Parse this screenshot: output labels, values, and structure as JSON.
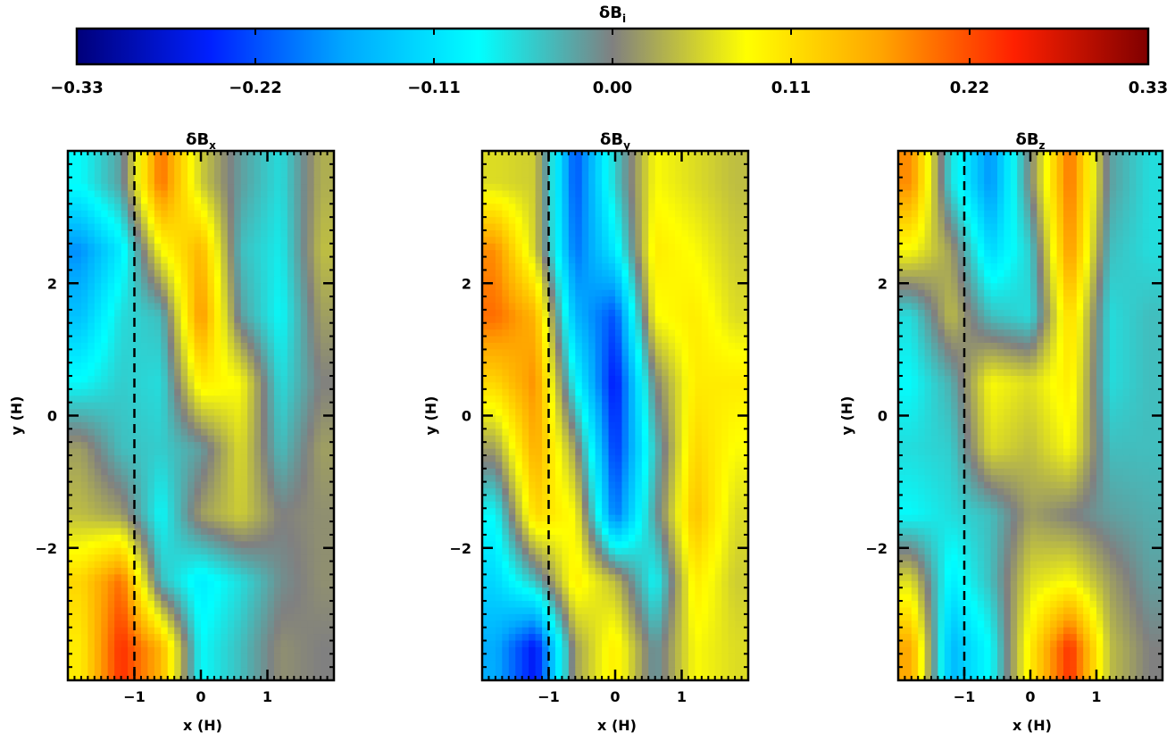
{
  "colorbar": {
    "title_base": "δB",
    "title_sub": "i",
    "ticks": [
      -0.33,
      -0.22,
      -0.11,
      0.0,
      0.11,
      0.22,
      0.33
    ],
    "tick_labels": [
      "−0.33",
      "−0.22",
      "−0.11",
      "0.00",
      "0.11",
      "0.22",
      "0.33"
    ],
    "range": [
      -0.33,
      0.33
    ],
    "colormap": [
      "#00007a",
      "#0020ff",
      "#00a8ff",
      "#00ffff",
      "#808080",
      "#ffff00",
      "#ffa500",
      "#ff2000",
      "#800000"
    ]
  },
  "chart_data": [
    {
      "type": "heatmap",
      "title_base": "δB",
      "title_sub": "x",
      "xlabel": "x (H)",
      "ylabel": "y (H)",
      "xlim": [
        -2,
        2
      ],
      "ylim": [
        -4,
        4
      ],
      "xticks": [
        -1,
        0,
        1
      ],
      "xtick_labels": [
        "−1",
        "0",
        "1"
      ],
      "yticks": [
        -2,
        0,
        2
      ],
      "ytick_labels": [
        "−2",
        "0",
        "2"
      ],
      "dashed_line_x": -1,
      "field": {
        "xs": [
          -1.8,
          -1.2,
          -0.6,
          0.0,
          0.6,
          1.2,
          1.8
        ],
        "ys": [
          3.5,
          2.5,
          1.5,
          0.5,
          -0.5,
          -1.5,
          -2.5,
          -3.5
        ],
        "values": [
          [
            -0.08,
            -0.02,
            0.2,
            0.05,
            -0.02,
            -0.06,
            0.03
          ],
          [
            -0.18,
            -0.1,
            0.08,
            0.15,
            -0.04,
            -0.07,
            0.04
          ],
          [
            -0.14,
            -0.06,
            -0.04,
            0.18,
            -0.02,
            -0.08,
            0.02
          ],
          [
            -0.08,
            -0.05,
            -0.06,
            0.1,
            0.08,
            -0.06,
            0.0
          ],
          [
            0.02,
            -0.04,
            -0.05,
            -0.02,
            0.06,
            -0.04,
            0.02
          ],
          [
            0.04,
            0.02,
            -0.08,
            0.02,
            0.05,
            0.0,
            0.01
          ],
          [
            0.12,
            0.2,
            -0.04,
            -0.1,
            -0.06,
            -0.01,
            0.01
          ],
          [
            0.1,
            0.24,
            0.15,
            -0.08,
            -0.04,
            0.01,
            0.0
          ]
        ]
      }
    },
    {
      "type": "heatmap",
      "title_base": "δB",
      "title_sub": "y",
      "xlabel": "x (H)",
      "ylabel": "y (H)",
      "xlim": [
        -2,
        2
      ],
      "ylim": [
        -4,
        4
      ],
      "xticks": [
        -1,
        0,
        1
      ],
      "xtick_labels": [
        "−1",
        "0",
        "1"
      ],
      "yticks": [
        -2,
        0,
        2
      ],
      "ytick_labels": [
        "−2",
        "0",
        "2"
      ],
      "dashed_line_x": -1,
      "field": {
        "xs": [
          -1.8,
          -1.2,
          -0.6,
          0.0,
          0.6,
          1.2,
          1.8
        ],
        "ys": [
          3.5,
          2.5,
          1.5,
          0.5,
          -0.5,
          -1.5,
          -2.5,
          -3.5
        ],
        "values": [
          [
            0.06,
            0.05,
            -0.22,
            -0.05,
            0.08,
            0.06,
            0.04
          ],
          [
            0.18,
            0.05,
            -0.2,
            -0.1,
            0.1,
            0.08,
            0.05
          ],
          [
            0.2,
            0.15,
            -0.15,
            -0.22,
            0.08,
            0.1,
            0.06
          ],
          [
            0.12,
            0.18,
            -0.08,
            -0.26,
            0.0,
            0.1,
            0.1
          ],
          [
            0.02,
            0.16,
            0.02,
            -0.24,
            -0.04,
            0.12,
            0.08
          ],
          [
            -0.08,
            0.12,
            0.08,
            -0.2,
            -0.02,
            0.14,
            0.06
          ],
          [
            -0.12,
            -0.04,
            0.1,
            0.04,
            -0.08,
            0.1,
            0.05
          ],
          [
            -0.16,
            -0.26,
            0.02,
            0.1,
            -0.02,
            0.08,
            0.06
          ]
        ]
      }
    },
    {
      "type": "heatmap",
      "title_base": "δB",
      "title_sub": "z",
      "xlabel": "x (H)",
      "ylabel": "y (H)",
      "xlim": [
        -2,
        2
      ],
      "ylim": [
        -4,
        4
      ],
      "xticks": [
        -1,
        0,
        1
      ],
      "xtick_labels": [
        "−1",
        "0",
        "1"
      ],
      "yticks": [
        -2,
        0,
        2
      ],
      "ytick_labels": [
        "−2",
        "0",
        "2"
      ],
      "dashed_line_x": -1,
      "field": {
        "xs": [
          -1.8,
          -1.2,
          -0.6,
          0.0,
          0.6,
          1.2,
          1.8
        ],
        "ys": [
          3.5,
          2.5,
          1.5,
          0.5,
          -0.5,
          -1.5,
          -2.5,
          -3.5
        ],
        "values": [
          [
            0.18,
            -0.06,
            -0.18,
            0.0,
            0.2,
            -0.02,
            -0.06
          ],
          [
            0.08,
            0.02,
            -0.12,
            -0.05,
            0.18,
            -0.04,
            -0.06
          ],
          [
            -0.06,
            0.04,
            -0.04,
            -0.06,
            0.12,
            -0.06,
            -0.04
          ],
          [
            -0.08,
            -0.03,
            0.08,
            0.06,
            0.1,
            -0.06,
            -0.04
          ],
          [
            -0.06,
            -0.05,
            0.06,
            0.04,
            0.08,
            -0.04,
            -0.04
          ],
          [
            -0.08,
            -0.06,
            -0.04,
            0.02,
            0.0,
            -0.02,
            -0.03
          ],
          [
            0.06,
            -0.1,
            -0.04,
            0.06,
            0.08,
            0.02,
            -0.02
          ],
          [
            0.16,
            -0.15,
            -0.08,
            0.1,
            0.24,
            0.04,
            0.0
          ]
        ]
      }
    }
  ]
}
